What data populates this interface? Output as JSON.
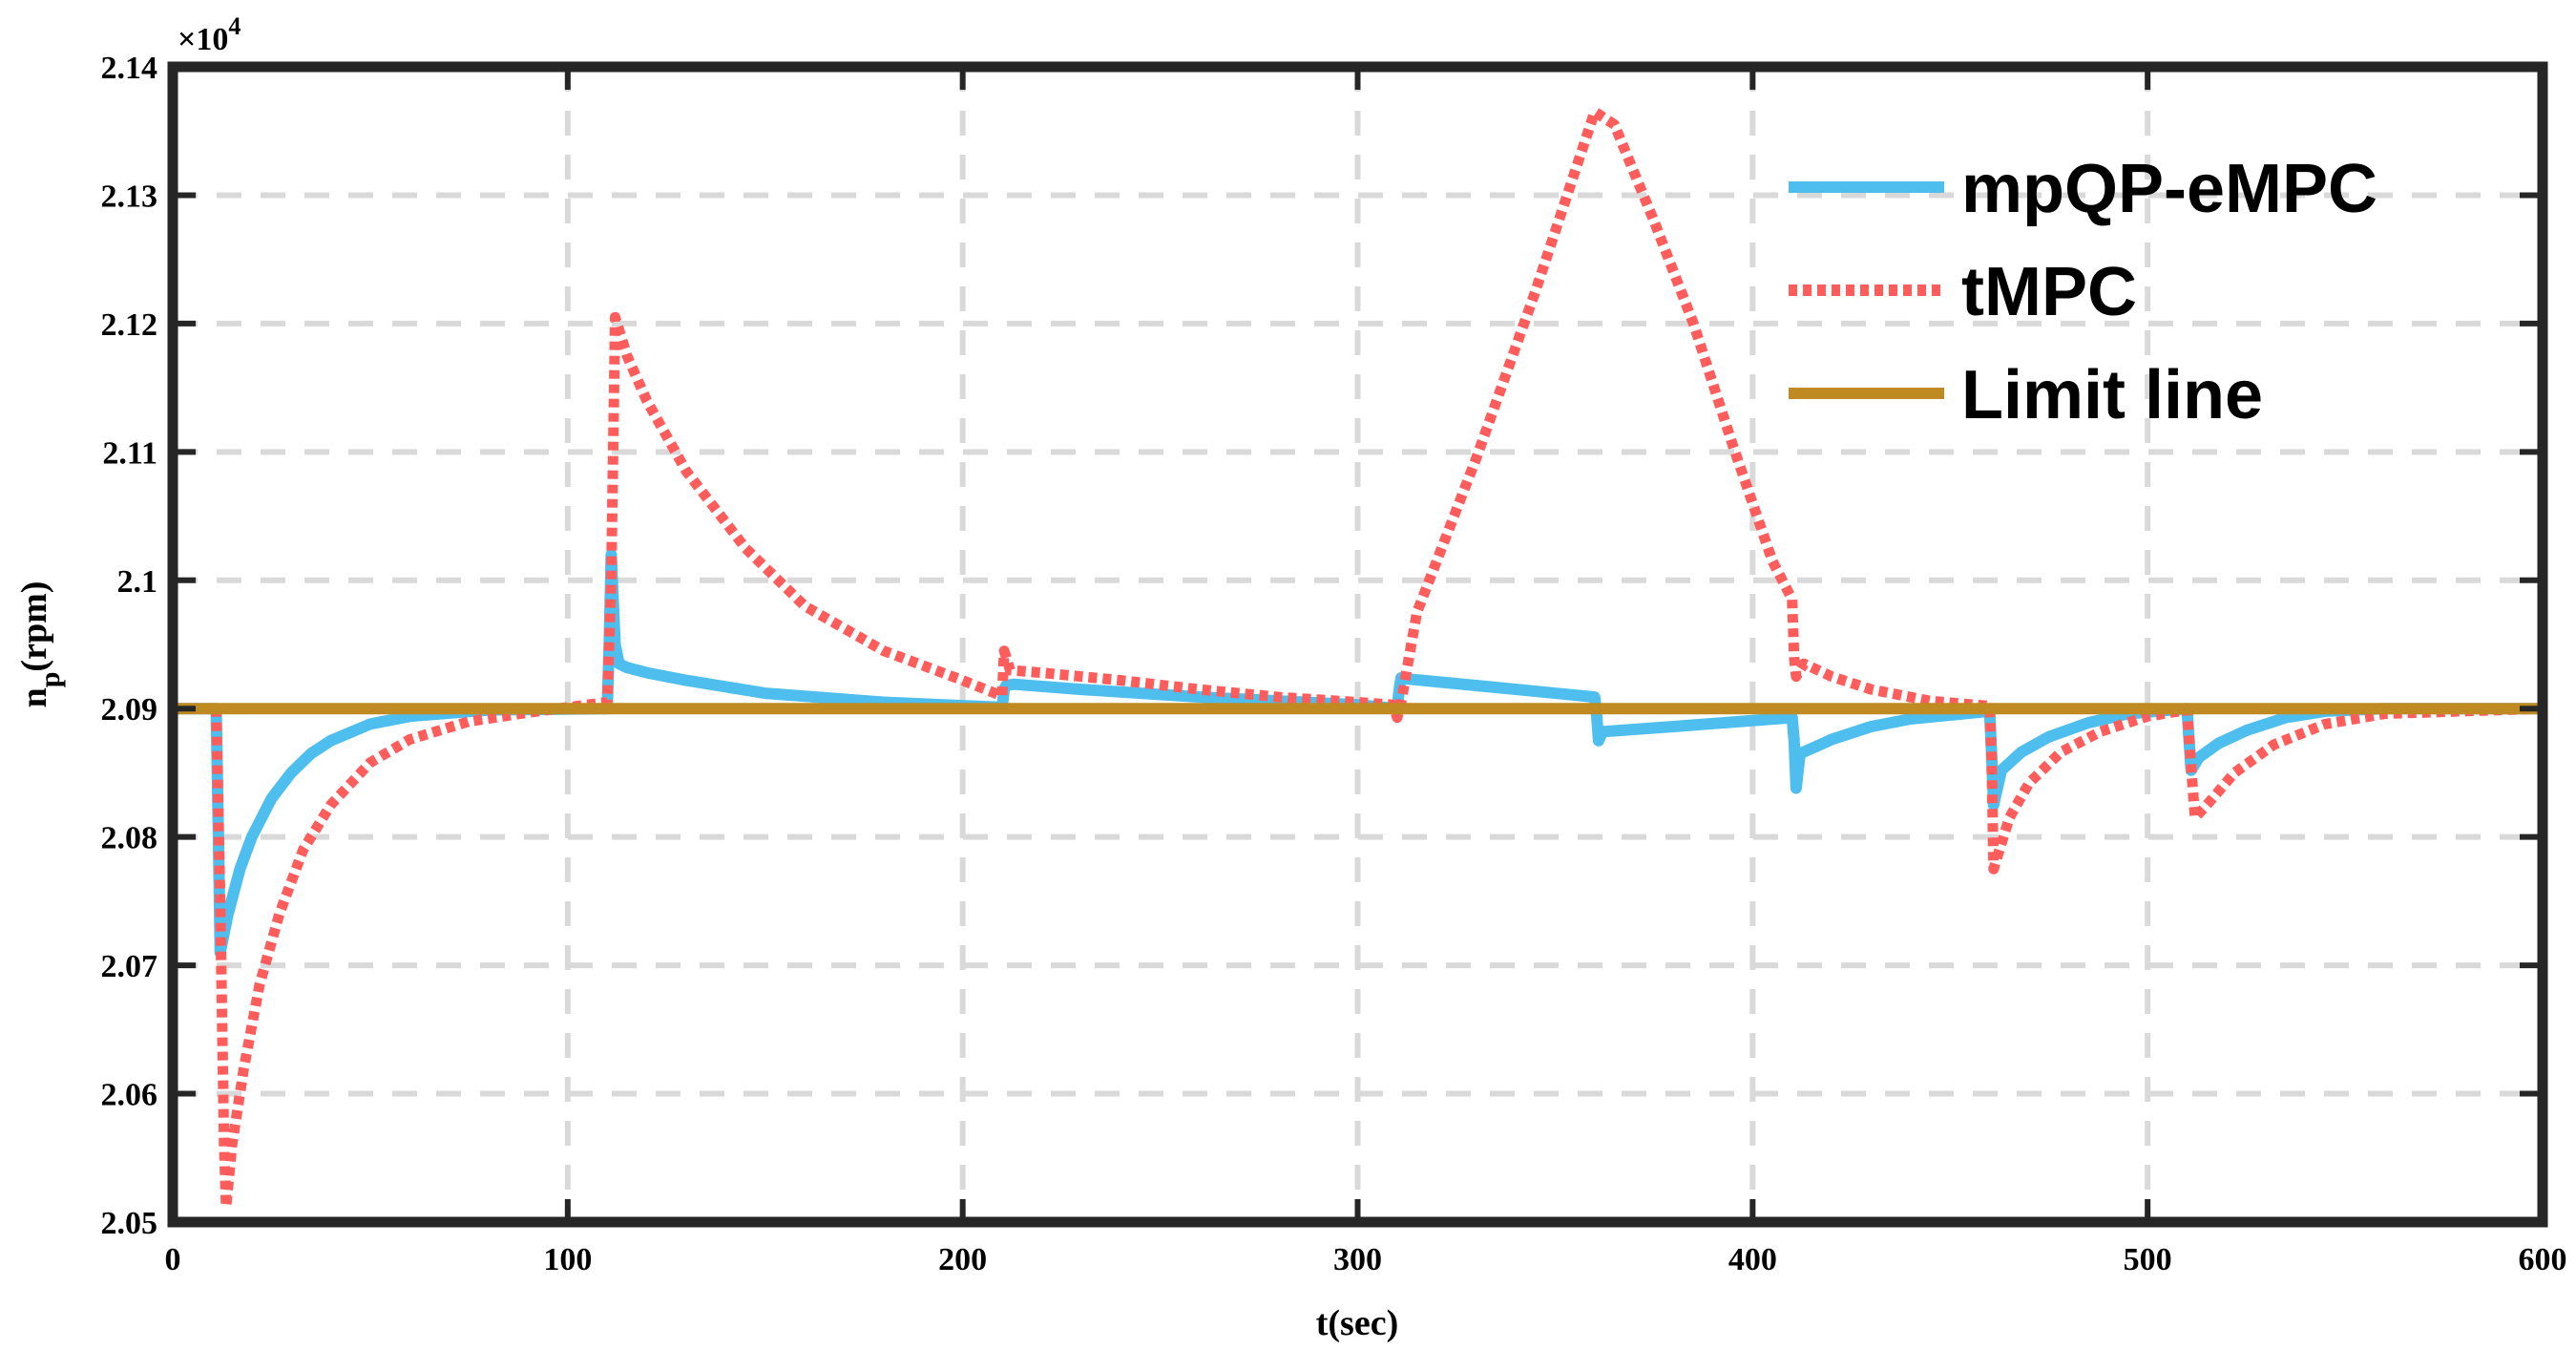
{
  "chart_data": {
    "type": "line",
    "title": "",
    "xlabel": "t(sec)",
    "ylabel": "n_p(rpm)",
    "ylabel_main": "n",
    "ylabel_sub": "p",
    "ylabel_unit": "(rpm)",
    "xlim": [
      0,
      600
    ],
    "ylim": [
      2.05,
      2.14
    ],
    "y_multiplier_base": "×10",
    "y_multiplier_exp": "4",
    "xticks": [
      0,
      100,
      200,
      300,
      400,
      500,
      600
    ],
    "xtick_labels": [
      "0",
      "100",
      "200",
      "300",
      "400",
      "500",
      "600"
    ],
    "yticks": [
      2.05,
      2.06,
      2.07,
      2.08,
      2.09,
      2.1,
      2.11,
      2.12,
      2.13,
      2.14
    ],
    "ytick_labels": [
      "2.05",
      "2.06",
      "2.07",
      "2.08",
      "2.09",
      "2.1",
      "2.11",
      "2.12",
      "2.13",
      "2.14"
    ],
    "grid": true,
    "legend_position": "top-right",
    "series": [
      {
        "name": "mpQP-eMPC",
        "color": "#4DBEEE",
        "style": "solid",
        "x": [
          0,
          11,
          11.5,
          12,
          14,
          17,
          20,
          25,
          30,
          35,
          40,
          50,
          60,
          80,
          110,
          110.5,
          111,
          112,
          113,
          115,
          120,
          130,
          150,
          180,
          210,
          210.5,
          211,
          213,
          230,
          260,
          300,
          310,
          310.5,
          311,
          313,
          330,
          360,
          360.5,
          361,
          362,
          380,
          410,
          410.5,
          411,
          412,
          415,
          420,
          430,
          440,
          460,
          460.5,
          461,
          463,
          468,
          475,
          485,
          495,
          510,
          510.5,
          511,
          513,
          518,
          525,
          535,
          545,
          560,
          600
        ],
        "y": [
          2.09,
          2.09,
          2.081,
          2.071,
          2.074,
          2.0775,
          2.08,
          2.083,
          2.085,
          2.0865,
          2.0875,
          2.0888,
          2.0894,
          2.0899,
          2.09,
          2.095,
          2.102,
          2.095,
          2.0935,
          2.0932,
          2.0928,
          2.0922,
          2.0912,
          2.0905,
          2.0901,
          2.0915,
          2.0918,
          2.0919,
          2.0915,
          2.0909,
          2.0903,
          2.09,
          2.0915,
          2.0924,
          2.0923,
          2.0918,
          2.0909,
          2.0895,
          2.0875,
          2.0882,
          2.0886,
          2.0893,
          2.0875,
          2.0838,
          2.0865,
          2.0869,
          2.0876,
          2.0886,
          2.0892,
          2.0898,
          2.0865,
          2.0825,
          2.0852,
          2.0866,
          2.0878,
          2.0889,
          2.0896,
          2.09,
          2.0875,
          2.0852,
          2.0862,
          2.0873,
          2.0883,
          2.0893,
          2.0898,
          2.09,
          2.09
        ]
      },
      {
        "name": "tMPC",
        "color": "#FF5C5C",
        "style": "dotted",
        "x": [
          0,
          11,
          12,
          13,
          13.5,
          15,
          18,
          22,
          27,
          33,
          40,
          50,
          60,
          75,
          90,
          110,
          111,
          112,
          115,
          120,
          130,
          145,
          160,
          180,
          200,
          209,
          210,
          210.5,
          211,
          212,
          220,
          240,
          260,
          280,
          300,
          309,
          310,
          311,
          315,
          330,
          345,
          360,
          365,
          375,
          385,
          395,
          405,
          410,
          410.5,
          411,
          413,
          420,
          430,
          445,
          460,
          460.5,
          461,
          462,
          465,
          470,
          478,
          488,
          500,
          510,
          511,
          512,
          515,
          522,
          532,
          545,
          560,
          600
        ],
        "y": [
          2.09,
          2.09,
          2.075,
          2.056,
          2.0512,
          2.056,
          2.062,
          2.0685,
          2.074,
          2.079,
          2.0825,
          2.0858,
          2.0876,
          2.089,
          2.0897,
          2.0905,
          2.1,
          2.1205,
          2.1175,
          2.114,
          2.1085,
          2.1025,
          2.098,
          2.0945,
          2.0922,
          2.0911,
          2.091,
          2.0945,
          2.094,
          2.093,
          2.0928,
          2.0922,
          2.0915,
          2.0909,
          2.0905,
          2.0903,
          2.0893,
          2.0905,
          2.0975,
          2.1095,
          2.1225,
          2.1365,
          2.1355,
          2.128,
          2.12,
          2.1105,
          2.1015,
          2.0985,
          2.094,
          2.0925,
          2.0935,
          2.0925,
          2.0915,
          2.0906,
          2.0902,
          2.086,
          2.0775,
          2.0785,
          2.0815,
          2.0842,
          2.0866,
          2.0882,
          2.0894,
          2.0899,
          2.0855,
          2.0815,
          2.0825,
          2.085,
          2.0872,
          2.0888,
          2.0896,
          2.09
        ]
      },
      {
        "name": "Limit line",
        "color": "#C08A22",
        "style": "solid",
        "x": [
          0,
          600
        ],
        "y": [
          2.09,
          2.09
        ]
      }
    ]
  }
}
